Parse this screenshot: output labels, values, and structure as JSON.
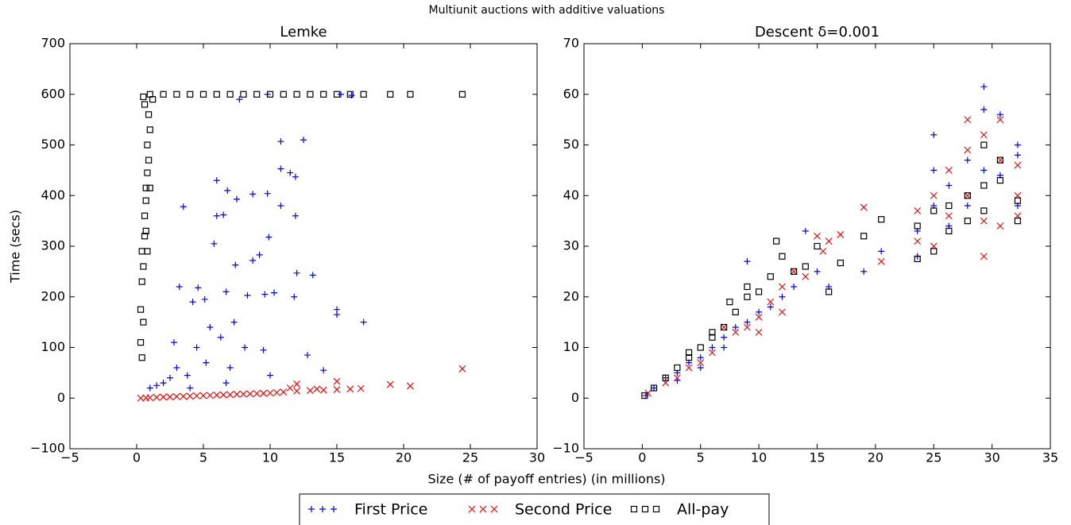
{
  "figure": {
    "title": "Multiunit auctions with additive valuations",
    "x_label": "Size (# of payoff entries) (in millions)",
    "y_label": "Time (secs)"
  },
  "chart_data": [
    {
      "type": "scatter",
      "title": "Lemke",
      "xlim": [
        -5,
        30
      ],
      "ylim": [
        -100,
        700
      ],
      "xticks": [
        {
          "value": -5,
          "label": "−5"
        },
        0,
        5,
        10,
        15,
        20,
        25,
        30
      ],
      "yticks": [
        {
          "value": -100,
          "label": "−100"
        },
        0,
        100,
        200,
        300,
        400,
        500,
        600,
        700
      ],
      "series": [
        {
          "name": "First Price",
          "color": "#0000ff",
          "marker": "plus",
          "x": [
            7.7,
            10.8,
            12.5,
            10.8,
            11.5,
            11.9,
            6,
            6.8,
            7.5,
            8.7,
            9.8,
            3.5,
            10.8,
            6,
            11.9,
            6.5,
            5.8,
            9.9,
            8.7,
            9.2,
            7.4,
            13.2,
            12,
            3.2,
            4.6,
            6.7,
            10.3,
            9.6,
            8.3,
            11.8,
            4.2,
            5.1,
            15,
            15,
            17,
            7.3,
            5.5,
            6.3,
            2.8,
            4.5,
            8.1,
            9.5,
            3,
            2.5,
            2,
            1.5,
            1,
            3.8,
            5.2,
            7,
            10,
            12.8,
            14,
            6.7,
            4,
            15.3,
            16.1,
            9.8
          ],
          "y": [
            590,
            507,
            510,
            453,
            445,
            437,
            430,
            410,
            393,
            403,
            404,
            378,
            380,
            360,
            360,
            362,
            305,
            318,
            272,
            283,
            263,
            243,
            247,
            220,
            218,
            210,
            208,
            205,
            203,
            200,
            190,
            195,
            175,
            165,
            150,
            150,
            140,
            120,
            110,
            100,
            100,
            95,
            60,
            40,
            30,
            25,
            20,
            45,
            70,
            60,
            45,
            85,
            55,
            30,
            20,
            600,
            598,
            600
          ]
        },
        {
          "name": "Second Price",
          "color": "#ff0000",
          "marker": "x",
          "x": [
            0.3,
            1,
            2,
            3,
            4,
            5,
            6,
            7,
            8,
            9,
            10,
            11,
            12,
            12,
            13,
            14,
            15,
            15,
            16,
            16.8,
            19,
            20.5,
            24.4,
            11.5,
            13.5,
            0.7,
            1.5,
            2.5,
            3.5,
            4.5,
            5.5,
            6.5,
            7.5,
            8.5,
            9.5,
            10.5
          ],
          "y": [
            0,
            1,
            2,
            3,
            4,
            5,
            6,
            7,
            8,
            9,
            10,
            12,
            14,
            28,
            15,
            16,
            17,
            33,
            18,
            19,
            27,
            24,
            58,
            20,
            18,
            0.5,
            1.5,
            2.5,
            3.5,
            4.5,
            5.5,
            6.5,
            7.5,
            8.5,
            9.5,
            11
          ]
        },
        {
          "name": "All-pay",
          "color": "#000000",
          "marker": "square",
          "x": [
            0.4,
            0.3,
            0.5,
            0.3,
            0.4,
            0.5,
            0.4,
            0.6,
            0.6,
            0.7,
            0.7,
            0.8,
            0.9,
            0.8,
            1.0,
            0.9,
            0.6,
            0.5,
            1.2,
            0.7,
            0.8,
            1.0,
            1,
            2,
            3,
            4,
            5,
            6,
            7,
            8,
            9,
            10,
            11,
            12,
            13,
            14,
            15,
            16,
            17,
            19,
            20.5,
            24.4
          ],
          "y": [
            80,
            110,
            150,
            175,
            230,
            260,
            290,
            320,
            360,
            390,
            415,
            445,
            470,
            500,
            530,
            560,
            580,
            595,
            590,
            330,
            290,
            415,
            600,
            600,
            600,
            600,
            600,
            600,
            600,
            600,
            600,
            600,
            600,
            600,
            600,
            600,
            600,
            600,
            600,
            600,
            600,
            600
          ]
        }
      ]
    },
    {
      "type": "scatter",
      "title": "Descent δ=0.001",
      "xlim": [
        -5,
        35
      ],
      "ylim": [
        -10,
        70
      ],
      "xticks": [
        {
          "value": -5,
          "label": "−5"
        },
        0,
        5,
        10,
        15,
        20,
        25,
        30,
        35
      ],
      "yticks": [
        {
          "value": -10,
          "label": "−10"
        },
        0,
        10,
        20,
        30,
        40,
        50,
        60,
        70
      ],
      "series": [
        {
          "name": "First Price",
          "color": "#0000ff",
          "marker": "plus",
          "x": [
            0.3,
            1,
            2,
            3,
            4,
            5,
            6,
            7,
            8,
            9,
            9,
            10,
            11,
            12,
            13,
            14,
            15,
            16,
            19,
            20.5,
            23.6,
            23.6,
            25,
            25,
            25,
            26.3,
            26.3,
            27.9,
            27.9,
            29.3,
            29.3,
            29.3,
            30.7,
            30.7,
            32.2,
            32.2,
            32.2,
            5,
            7,
            3
          ],
          "y": [
            0.5,
            2,
            4,
            5,
            7,
            8,
            10,
            12,
            14,
            27,
            15,
            17,
            18,
            20,
            22,
            33,
            25,
            22,
            25,
            29,
            33,
            28,
            52,
            45,
            38,
            42,
            34,
            47,
            38,
            61.5,
            57,
            45,
            56,
            44,
            50,
            48,
            38,
            6,
            10,
            3.5
          ]
        },
        {
          "name": "Second Price",
          "color": "#ff0000",
          "marker": "x",
          "x": [
            0.5,
            2,
            4,
            6,
            7,
            8,
            9,
            10,
            11,
            12,
            13,
            15,
            16,
            17,
            19,
            20.5,
            23.6,
            23.6,
            25,
            25,
            26.3,
            26.3,
            27.9,
            27.9,
            27.9,
            29.3,
            29.3,
            29.3,
            30.7,
            30.7,
            30.7,
            32.2,
            32.2,
            32.2,
            3,
            5,
            14,
            15.5,
            12,
            10
          ],
          "y": [
            1,
            3,
            6,
            9,
            14,
            13,
            14,
            16,
            19,
            17,
            25,
            32,
            31,
            32.3,
            37.7,
            27,
            37,
            31,
            40,
            30,
            45,
            36,
            55,
            49,
            40,
            52,
            28,
            35,
            55,
            47,
            34,
            46,
            40,
            36,
            4,
            7,
            24,
            29,
            22,
            13
          ]
        },
        {
          "name": "All-pay",
          "color": "#000000",
          "marker": "square",
          "x": [
            0.2,
            1,
            2,
            3,
            4,
            5,
            6,
            7,
            7.5,
            8,
            9,
            10,
            11,
            11.5,
            12,
            13,
            14,
            15,
            16,
            17,
            19,
            20.5,
            23.6,
            23.6,
            25,
            25,
            26.3,
            26.3,
            27.9,
            27.9,
            29.3,
            29.3,
            29.3,
            30.7,
            30.7,
            32.2,
            32.2,
            4,
            6,
            9
          ],
          "y": [
            0.5,
            2,
            4,
            6,
            8,
            10,
            12,
            14,
            19,
            17,
            20,
            21,
            24,
            31,
            28,
            25,
            26,
            30,
            21,
            26.7,
            32,
            35.3,
            34,
            27.5,
            37,
            29,
            38,
            33,
            40,
            35,
            50,
            42,
            37,
            47,
            43,
            39,
            35,
            9,
            13,
            22
          ]
        }
      ]
    }
  ]
}
